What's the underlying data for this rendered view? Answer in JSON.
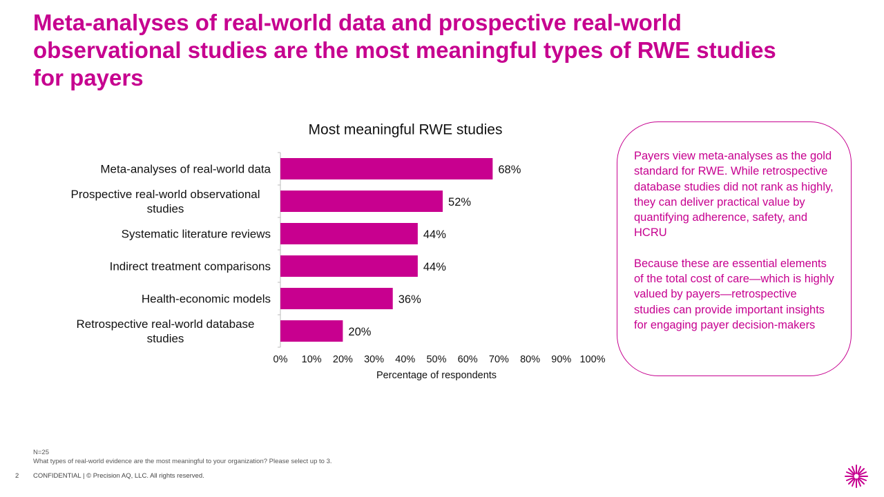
{
  "title": "Meta-analyses of real-world data and prospective real-world observational studies are the most meaningful types of RWE studies for payers",
  "chart_data": {
    "type": "bar",
    "title": "Most meaningful RWE studies",
    "x_label": "Percentage of respondents",
    "categories": [
      "Meta-analyses of real-world data",
      "Prospective real-world observational studies",
      "Systematic literature reviews",
      "Indirect treatment comparisons",
      "Health-economic models",
      "Retrospective real-world database studies"
    ],
    "values": [
      68,
      52,
      44,
      44,
      36,
      20
    ],
    "value_labels": [
      "68%",
      "52%",
      "44%",
      "44%",
      "36%",
      "20%"
    ],
    "color": "#c8008f",
    "xlim": [
      0,
      100
    ],
    "xticks": [
      {
        "value": 0,
        "label": "0%"
      },
      {
        "value": 10,
        "label": "10%"
      },
      {
        "value": 20,
        "label": "20%"
      },
      {
        "value": 30,
        "label": "30%"
      },
      {
        "value": 40,
        "label": "40%"
      },
      {
        "value": 50,
        "label": "50%"
      },
      {
        "value": 60,
        "label": "60%"
      },
      {
        "value": 70,
        "label": "70%"
      },
      {
        "value": 80,
        "label": "80%"
      },
      {
        "value": 90,
        "label": "90%"
      },
      {
        "value": 100,
        "label": "100%"
      }
    ]
  },
  "callout": {
    "paragraphs": [
      "Payers view meta-analyses as the gold standard for RWE. While retrospective database studies did not rank as highly, they can deliver practical value by quantifying adherence, safety, and HCRU",
      "Because these are essential elements of the total cost of care—which is highly valued by payers—retrospective studies can provide important insights for engaging payer decision-makers"
    ]
  },
  "footnotes": [
    "N=25",
    "What types of real-world evidence are the most meaningful to your organization? Please select up to 3."
  ],
  "footer": {
    "page_number": 2,
    "text": "CONFIDENTIAL | © Precision AQ, LLC. All rights reserved."
  }
}
